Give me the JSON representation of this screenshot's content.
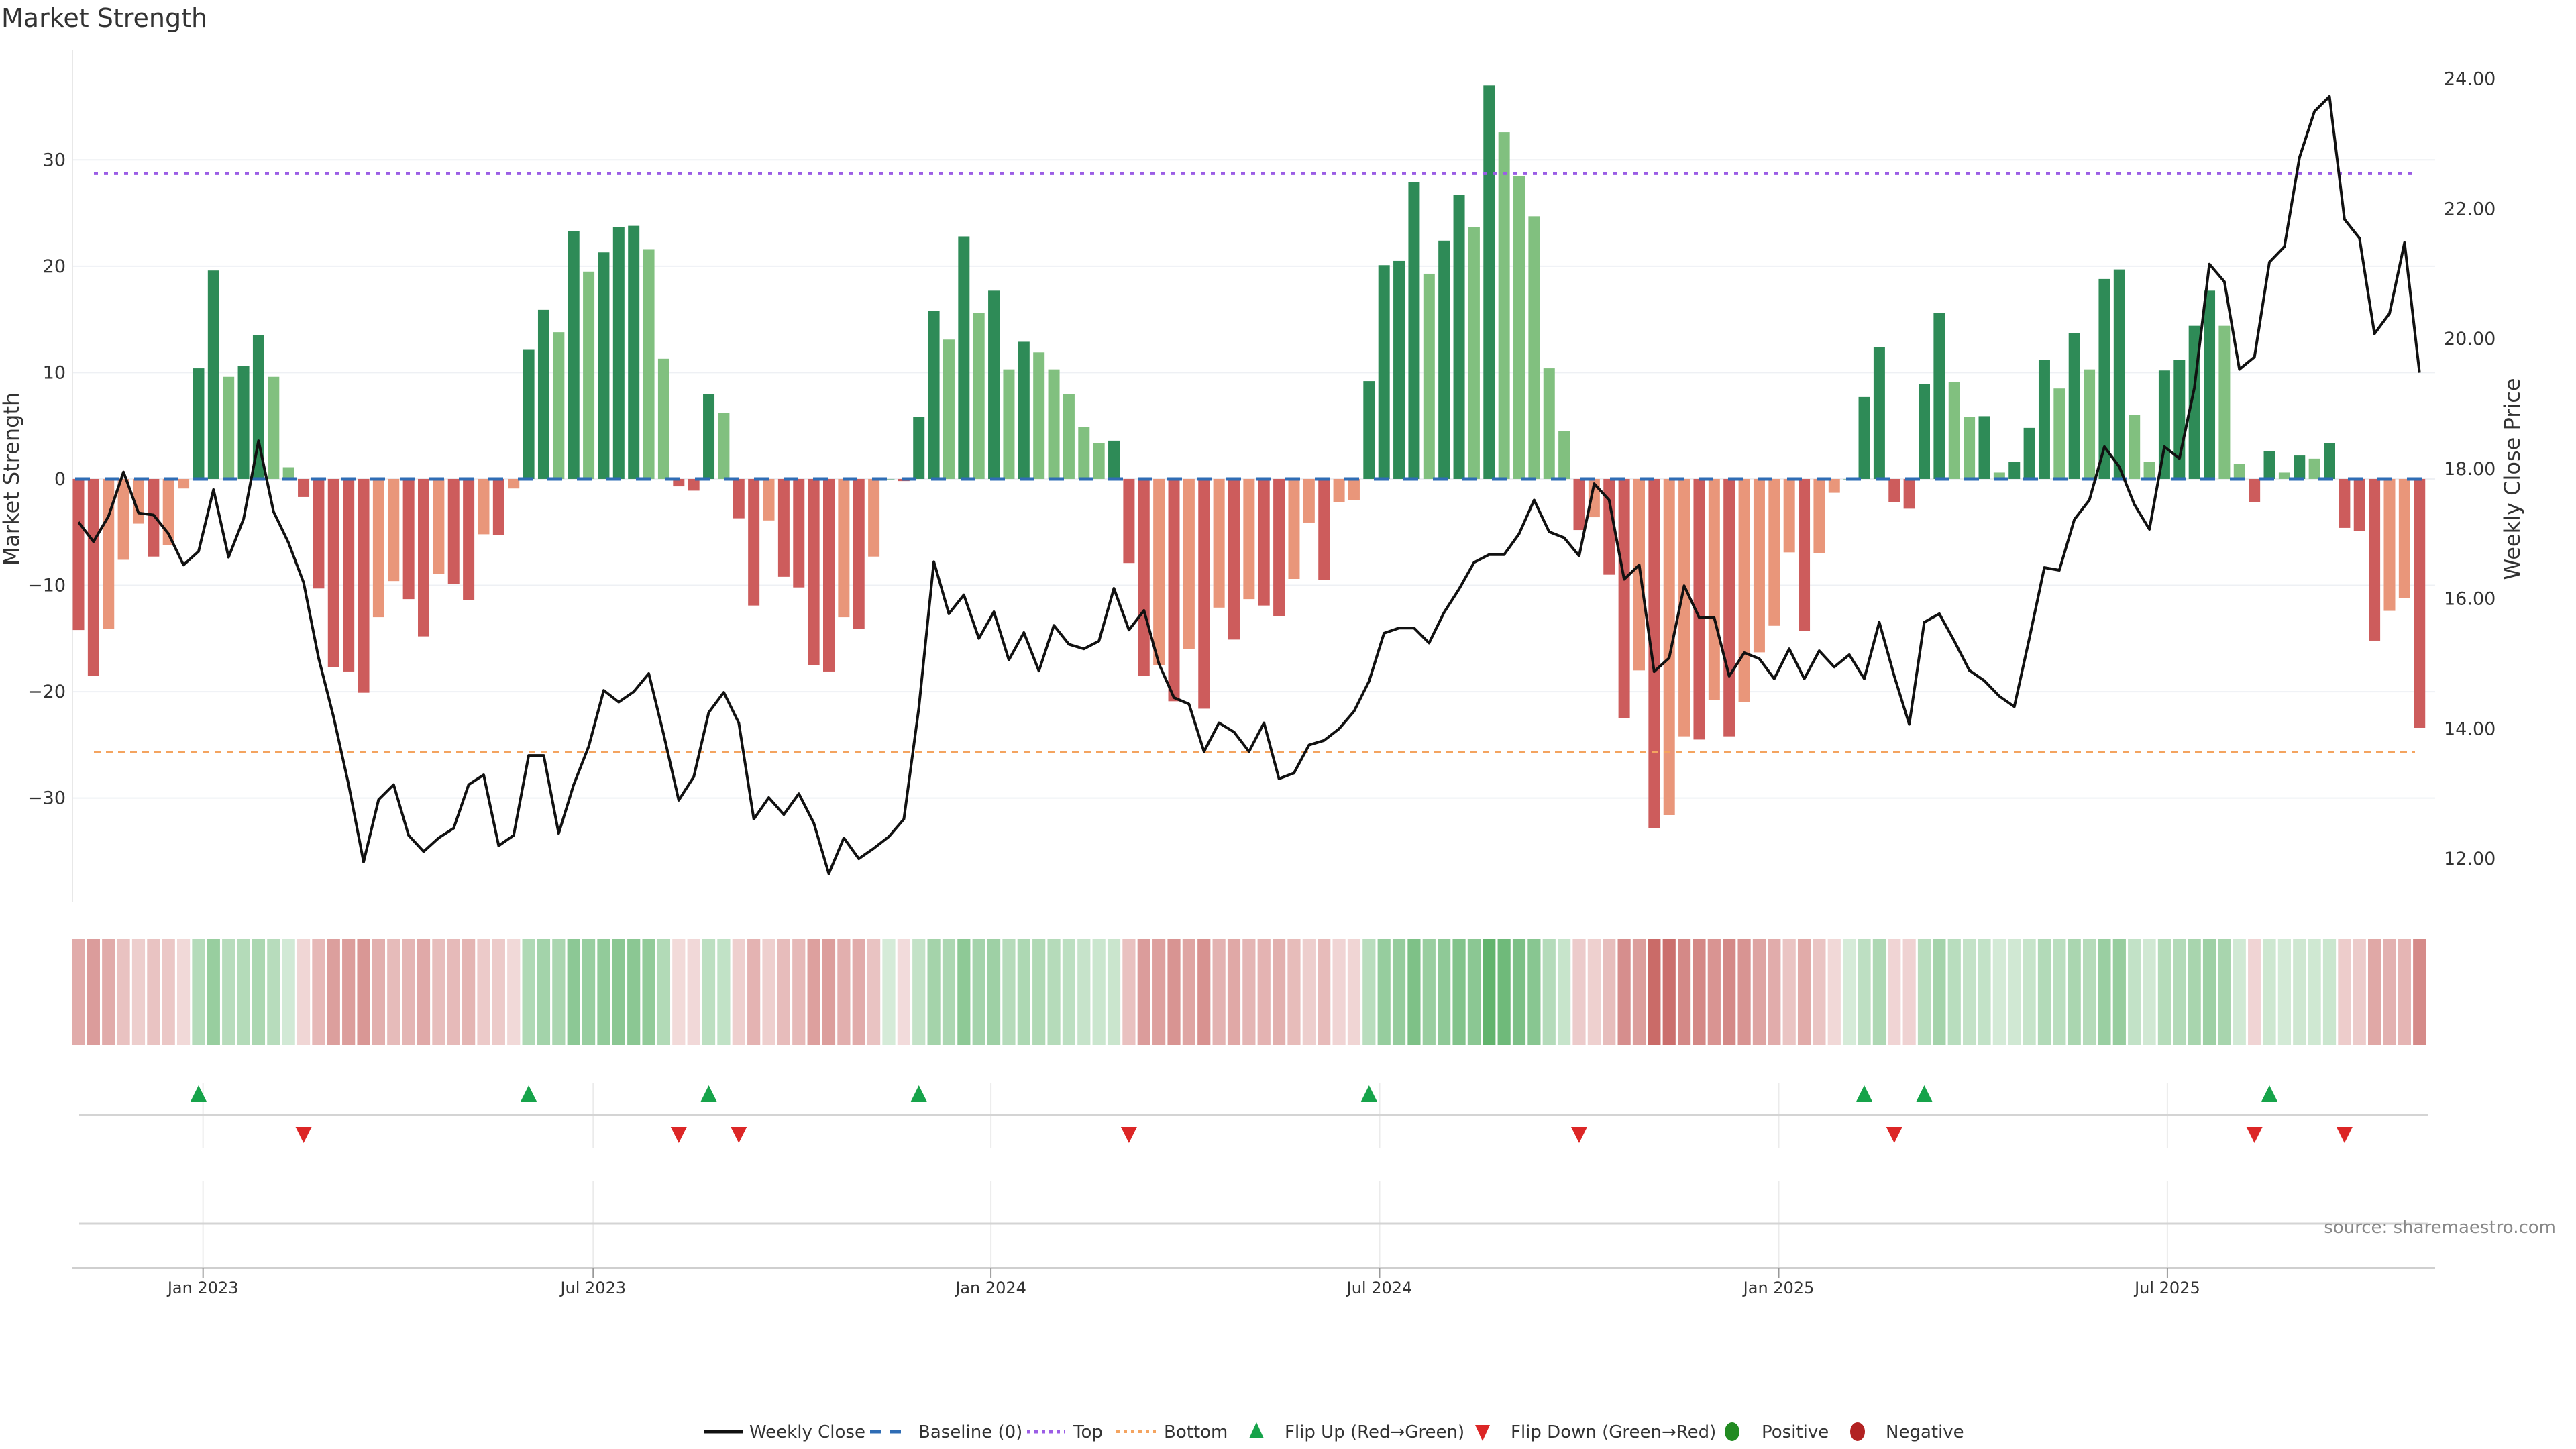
{
  "chart_data": {
    "type": "bar",
    "title": "Market Strength",
    "ylabel": "Market Strength",
    "y2label": "Weekly Close Price",
    "ylim": [
      -39.8,
      40.3
    ],
    "y2lim": [
      11.33,
      24.44
    ],
    "yticks": [
      -30,
      -20,
      -10,
      0,
      10,
      20,
      30
    ],
    "yticklabels": [
      "−30",
      "−20",
      "−10",
      "0",
      "10",
      "20",
      "30"
    ],
    "y2ticks": [
      12,
      14,
      16,
      18,
      20,
      22,
      24
    ],
    "y2ticklabels": [
      "12.00",
      "14.00",
      "16.00",
      "18.00",
      "20.00",
      "22.00",
      "24.00"
    ],
    "x_ticks": [
      {
        "label": "Jan 2023",
        "week": 9.3
      },
      {
        "label": "Jul 2023",
        "week": 35.3
      },
      {
        "label": "Jan 2024",
        "week": 61.8
      },
      {
        "label": "Jul 2024",
        "week": 87.7
      },
      {
        "label": "Jan 2025",
        "week": 114.3
      },
      {
        "label": "Jul 2025",
        "week": 140.2
      }
    ],
    "grid": true,
    "top_threshold": 28.7,
    "bottom_threshold": -25.7,
    "baseline": 0,
    "colors": {
      "strong_positive": "#2e8b57",
      "weak_positive": "#81c07f",
      "strong_negative": "#cd5c5c",
      "weak_negative": "#e9967a",
      "weekly_close": "#111111",
      "baseline": "#2f6db5",
      "top": "#9b5de5",
      "bottom": "#f4a460",
      "flip_up": "#16a34a",
      "flip_down": "#dc2626",
      "positive": "#228b22",
      "negative": "#b22222"
    },
    "series": [
      {
        "name": "Market Strength",
        "values": [
          -14.2,
          -18.5,
          -14.1,
          -7.6,
          -4.2,
          -7.3,
          -6.2,
          -0.9,
          10.4,
          19.6,
          9.6,
          10.6,
          13.5,
          9.6,
          1.1,
          -1.7,
          -10.3,
          -17.7,
          -18.1,
          -20.1,
          -13,
          -9.6,
          -11.3,
          -14.8,
          -8.9,
          -9.9,
          -11.4,
          -5.2,
          -5.3,
          -0.9,
          12.2,
          15.9,
          13.8,
          23.3,
          19.5,
          21.3,
          23.7,
          23.8,
          21.6,
          11.3,
          -0.7,
          -1.1,
          8,
          6.2,
          -3.7,
          -11.9,
          -3.9,
          -9.2,
          -10.2,
          -17.5,
          -18.1,
          -13,
          -14.1,
          -7.3,
          0,
          -0.2,
          5.8,
          15.8,
          13.1,
          22.8,
          15.6,
          17.7,
          10.3,
          12.9,
          11.9,
          10.3,
          8,
          4.9,
          3.4,
          3.6,
          -7.9,
          -18.5,
          -17.5,
          -20.9,
          -16,
          -21.6,
          -12.1,
          -15.1,
          -11.3,
          -11.9,
          -12.9,
          -9.4,
          -4.1,
          -9.5,
          -2.2,
          -2,
          9.2,
          20.1,
          20.5,
          27.9,
          19.3,
          22.4,
          26.7,
          23.7,
          37,
          32.6,
          28.5,
          24.7,
          10.4,
          4.5,
          -4.8,
          -3.6,
          -9,
          -22.5,
          -18,
          -32.8,
          -31.6,
          -24.2,
          -24.5,
          -20.8,
          -24.2,
          -21,
          -16.3,
          -13.8,
          -6.9,
          -14.3,
          -7,
          -1.3,
          0,
          7.7,
          12.4,
          -2.2,
          -2.8,
          8.9,
          15.6,
          9.1,
          5.8,
          5.9,
          0.6,
          1.6,
          4.8,
          11.2,
          8.5,
          13.7,
          10.3,
          18.8,
          19.7,
          6,
          1.6,
          10.2,
          11.2,
          14.4,
          17.7,
          14.4,
          1.4,
          -2.2,
          2.6,
          0.6,
          2.2,
          1.9,
          3.4,
          -4.6,
          -4.9,
          -15.2,
          -12.4,
          -11.2,
          -23.4
        ]
      },
      {
        "name": "Weekly Close",
        "axis": "right",
        "values": [
          17.18,
          16.88,
          17.27,
          17.95,
          17.32,
          17.29,
          17.0,
          16.52,
          16.73,
          17.68,
          16.64,
          17.23,
          18.43,
          17.34,
          16.86,
          16.25,
          15.09,
          14.18,
          13.14,
          11.95,
          12.91,
          13.14,
          12.36,
          12.11,
          12.32,
          12.47,
          13.14,
          13.29,
          12.2,
          12.36,
          13.59,
          13.59,
          12.39,
          13.14,
          13.73,
          14.59,
          14.41,
          14.57,
          14.85,
          13.91,
          12.9,
          13.26,
          14.25,
          14.56,
          14.09,
          12.61,
          12.94,
          12.68,
          13.0,
          12.55,
          11.77,
          12.32,
          12.0,
          12.16,
          12.34,
          12.61,
          14.32,
          16.57,
          15.77,
          16.06,
          15.39,
          15.8,
          15.06,
          15.48,
          14.89,
          15.59,
          15.3,
          15.23,
          15.35,
          16.16,
          15.52,
          15.82,
          15.0,
          14.48,
          14.38,
          13.65,
          14.09,
          13.95,
          13.65,
          14.09,
          13.23,
          13.32,
          13.75,
          13.82,
          14.0,
          14.27,
          14.73,
          15.47,
          15.55,
          15.55,
          15.32,
          15.79,
          16.15,
          16.56,
          16.68,
          16.68,
          17.0,
          17.52,
          17.03,
          16.94,
          16.66,
          17.77,
          17.52,
          16.3,
          16.52,
          14.88,
          15.09,
          16.2,
          15.71,
          15.71,
          14.81,
          15.17,
          15.08,
          14.77,
          15.23,
          14.77,
          15.2,
          14.95,
          15.14,
          14.77,
          15.64,
          14.81,
          14.07,
          15.64,
          15.77,
          15.35,
          14.9,
          14.74,
          14.5,
          14.34,
          15.39,
          16.48,
          16.44,
          17.22,
          17.52,
          18.34,
          18.03,
          17.45,
          17.07,
          18.34,
          18.16,
          19.25,
          21.15,
          20.88,
          19.53,
          19.72,
          21.18,
          21.42,
          22.79,
          23.5,
          23.73,
          21.84,
          21.55,
          20.08,
          20.39,
          21.48,
          19.48
        ]
      }
    ],
    "flip_up_weeks": [
      9,
      31,
      43,
      57,
      87,
      120,
      124,
      147
    ],
    "flip_down_weeks": [
      16,
      41,
      45,
      71,
      101,
      122,
      146,
      152
    ],
    "legend": {
      "placement": "bottom",
      "items": [
        "Weekly Close",
        "Baseline (0)",
        "Top",
        "Bottom",
        "Flip Up (Red→Green)",
        "Flip Down (Green→Red)",
        "Positive",
        "Negative"
      ]
    },
    "source": "source: sharemaestro.com"
  }
}
